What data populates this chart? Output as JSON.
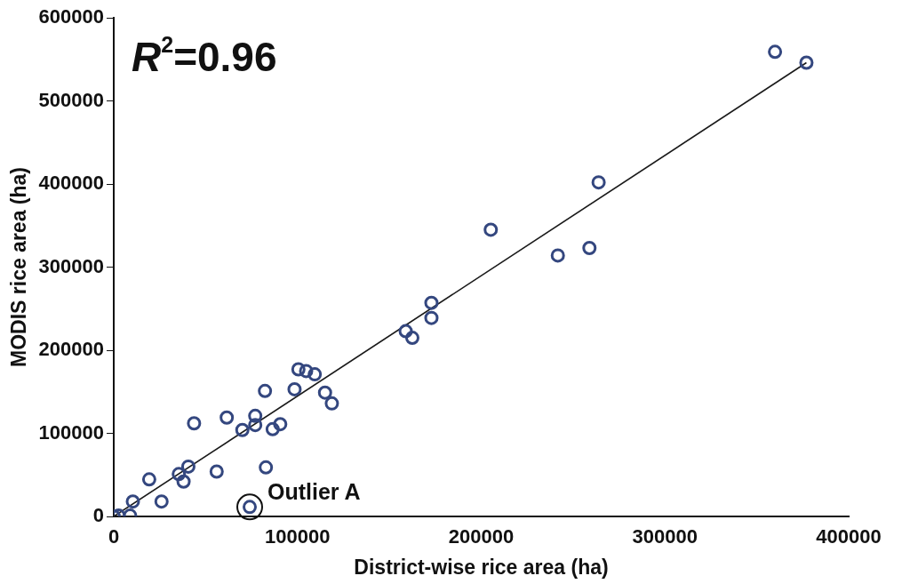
{
  "chart_data": {
    "type": "scatter",
    "xlabel": "District-wise rice area (ha)",
    "ylabel": "MODIS rice area (ha)",
    "xlim": [
      0,
      400000
    ],
    "xticks": [
      0,
      100000,
      200000,
      300000,
      400000
    ],
    "ylim": [
      0,
      600000
    ],
    "yticks": [
      0,
      100000,
      200000,
      300000,
      400000,
      500000,
      600000
    ],
    "grid": false,
    "legend": false,
    "marker": "circle",
    "series": [
      {
        "color": "#34477f",
        "x": [
          0,
          2600,
          8900,
          10400,
          19300,
          26000,
          35400,
          38000,
          40600,
          56000,
          43700,
          61500,
          70000,
          77000,
          77000,
          82300,
          82800,
          86500,
          90600,
          98400,
          100500,
          104700,
          109400,
          115000,
          118700,
          74000,
          158900,
          162500,
          172900,
          172900,
          205200,
          241700,
          258900,
          263900,
          359900,
          377000
        ],
        "values": [
          0,
          1000,
          1000,
          18000,
          44600,
          18000,
          51000,
          42000,
          60000,
          54000,
          112000,
          119000,
          104000,
          121000,
          110000,
          151000,
          59000,
          105000,
          111000,
          153000,
          177000,
          175000,
          171000,
          149000,
          136000,
          11400,
          222900,
          214900,
          257000,
          238900,
          345000,
          314000,
          323000,
          402000,
          559000,
          546000
        ]
      },
      {
        "type": "line",
        "color": "#1a1a1a",
        "marker": "none",
        "x": [
          0,
          377000
        ],
        "values": [
          0,
          546000
        ]
      }
    ],
    "annotations": [
      "R$^{2}$=0.96",
      {
        "text": "Outlier A",
        "x": 74000,
        "y": 11400
      }
    ]
  }
}
